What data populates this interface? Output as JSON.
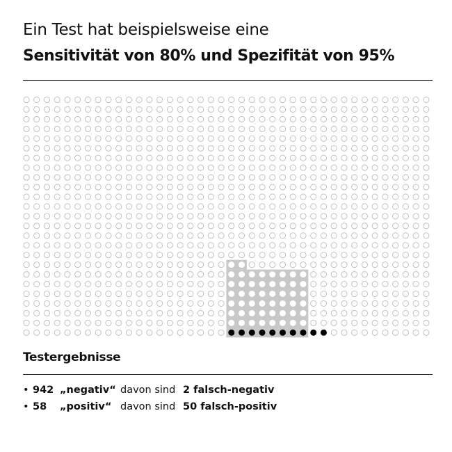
{
  "title": {
    "line1": "Ein Test hat beispielsweise eine",
    "line2": "Sensitivität von 80% und Spezifität von 95%"
  },
  "grid": {
    "columns": 40,
    "rows": 25,
    "total": 1000,
    "shaded_count": 48,
    "filled_count": 10,
    "colors": {
      "outline": "#bbbbbb",
      "shaded_bg": "#c8c8c8",
      "shaded_dot": "#ffffff",
      "filled": "#000000"
    }
  },
  "results": {
    "heading": "Testergebnisse",
    "rows": [
      {
        "bullet": "•",
        "count": "942",
        "label": "„negativ“",
        "prefix": "davon sind",
        "false_value": "2 falsch-negativ"
      },
      {
        "bullet": "•",
        "count": "58",
        "label": "„positiv“",
        "prefix": "davon sind",
        "false_value": "50 falsch-positiv"
      }
    ]
  }
}
